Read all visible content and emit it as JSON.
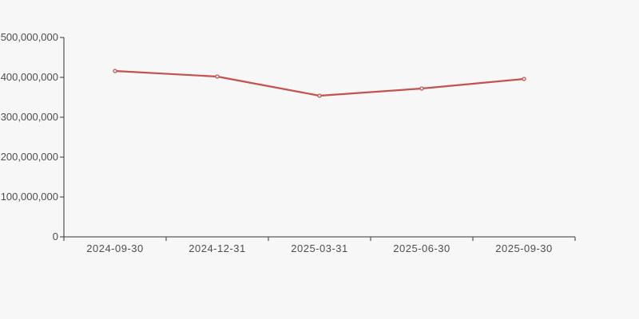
{
  "page": {
    "background_color": "#f7f7f7"
  },
  "chart_data": {
    "type": "line",
    "categories": [
      "2024-09-30",
      "2024-12-31",
      "2025-03-31",
      "2025-06-30",
      "2025-09-30"
    ],
    "series": [
      {
        "name": "value",
        "values": [
          416000000,
          402000000,
          354000000,
          372000000,
          396000000
        ],
        "color": "#c5514d",
        "marker": "circle-open"
      }
    ],
    "title": "",
    "xlabel": "",
    "ylabel": "",
    "ylim": [
      0,
      500000000
    ],
    "y_ticks": [
      {
        "value": 0,
        "label": "0"
      },
      {
        "value": 100000000,
        "label": "100,000,000"
      },
      {
        "value": 200000000,
        "label": "200,000,000"
      },
      {
        "value": 300000000,
        "label": "300,000,000"
      },
      {
        "value": 400000000,
        "label": "400,000,000"
      },
      {
        "value": 500000000,
        "label": "500,000,000"
      }
    ],
    "grid": false,
    "legend_position": "none",
    "axis_color": "#333333",
    "tick_label_color": "#4d4d4d",
    "marker_fill": "#ffffff"
  }
}
